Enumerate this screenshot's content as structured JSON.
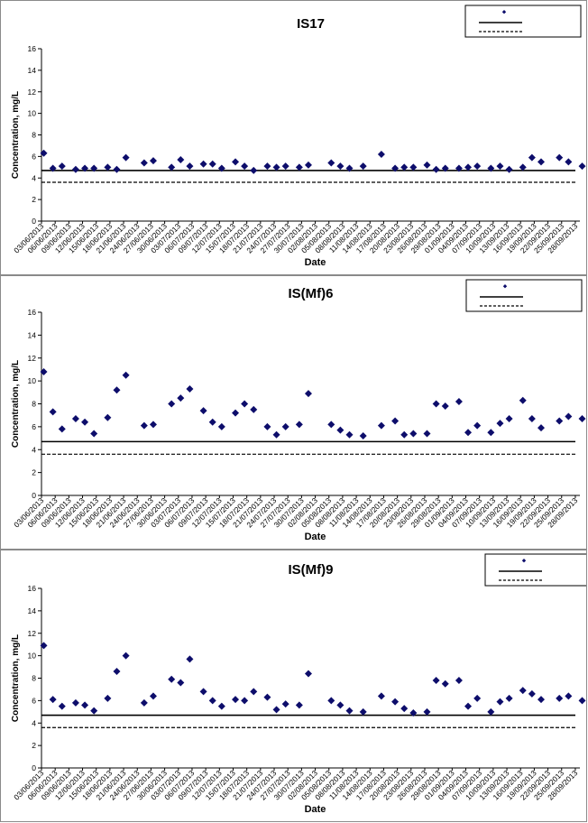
{
  "x_ticks": [
    "03/06/2013",
    "06/06/2013",
    "09/06/2013",
    "12/06/2013",
    "15/06/2013",
    "18/06/2013",
    "21/06/2013",
    "24/06/2013",
    "27/06/2013",
    "30/06/2013",
    "03/07/2013",
    "06/07/2013",
    "09/07/2013",
    "12/07/2013",
    "15/07/2013",
    "18/07/2013",
    "21/07/2013",
    "24/07/2013",
    "27/07/2013",
    "30/07/2013",
    "02/08/2013",
    "05/08/2013",
    "08/08/2013",
    "11/08/2013",
    "14/08/2013",
    "17/08/2013",
    "20/08/2013",
    "23/08/2013",
    "26/08/2013",
    "29/08/2013",
    "01/09/2013",
    "04/09/2013",
    "07/09/2013",
    "10/09/2013",
    "13/09/2013",
    "16/09/2013",
    "19/09/2013",
    "22/09/2013",
    "25/09/2013",
    "28/09/2013"
  ],
  "colors": {
    "marker": "#0d0d6b",
    "axis": "#000000",
    "frame": "#8a8a8a"
  },
  "chart_data": [
    {
      "type": "scatter",
      "title": "IS17",
      "xlabel": "Date",
      "ylabel": "Concentration, mg/L",
      "ylim": [
        0,
        16
      ],
      "yticks": [
        0,
        2,
        4,
        6,
        8,
        10,
        12,
        14,
        16
      ],
      "grid": false,
      "legend_position": "top-right",
      "series": [
        {
          "name": "",
          "marker": "diamond",
          "x": [
            "03/06/2013",
            "05/06/2013",
            "07/06/2013",
            "10/06/2013",
            "12/06/2013",
            "14/06/2013",
            "17/06/2013",
            "19/06/2013",
            "21/06/2013",
            "25/06/2013",
            "27/06/2013",
            "01/07/2013",
            "03/07/2013",
            "05/07/2013",
            "08/07/2013",
            "10/07/2013",
            "12/07/2013",
            "15/07/2013",
            "17/07/2013",
            "19/07/2013",
            "22/07/2013",
            "24/07/2013",
            "26/07/2013",
            "29/07/2013",
            "31/07/2013",
            "05/08/2013",
            "07/08/2013",
            "09/08/2013",
            "12/08/2013",
            "16/08/2013",
            "19/08/2013",
            "21/08/2013",
            "23/08/2013",
            "26/08/2013",
            "28/08/2013",
            "30/08/2013",
            "02/09/2013",
            "04/09/2013",
            "06/09/2013",
            "09/09/2013",
            "11/09/2013",
            "13/09/2013",
            "16/09/2013",
            "18/09/2013",
            "20/09/2013",
            "24/09/2013",
            "26/09/2013",
            "29/09/2013"
          ],
          "y": [
            6.3,
            4.9,
            5.1,
            4.8,
            4.9,
            4.9,
            5.0,
            4.8,
            5.9,
            5.4,
            5.6,
            5.0,
            5.7,
            5.1,
            5.3,
            5.3,
            4.9,
            5.5,
            5.1,
            4.7,
            5.1,
            5.0,
            5.1,
            5.0,
            5.2,
            5.4,
            5.1,
            4.9,
            5.1,
            6.2,
            4.9,
            5.0,
            5.0,
            5.2,
            4.8,
            4.9,
            4.9,
            5.0,
            5.1,
            4.9,
            5.1,
            4.8,
            5.0,
            5.9,
            5.5,
            5.9,
            5.5,
            5.1
          ]
        },
        {
          "name": "",
          "line": "solid",
          "y": 4.7
        },
        {
          "name": "",
          "line": "dashed",
          "y": 3.6
        }
      ]
    },
    {
      "type": "scatter",
      "title": "IS(Mf)6",
      "xlabel": "Date",
      "ylabel": "Concentration, mg/L",
      "ylim": [
        0,
        16
      ],
      "yticks": [
        0,
        2,
        4,
        6,
        8,
        10,
        12,
        14,
        16
      ],
      "grid": false,
      "legend_position": "top-right",
      "series": [
        {
          "name": "",
          "marker": "diamond",
          "x": [
            "03/06/2013",
            "05/06/2013",
            "07/06/2013",
            "10/06/2013",
            "12/06/2013",
            "14/06/2013",
            "17/06/2013",
            "19/06/2013",
            "21/06/2013",
            "25/06/2013",
            "27/06/2013",
            "01/07/2013",
            "03/07/2013",
            "05/07/2013",
            "08/07/2013",
            "10/07/2013",
            "12/07/2013",
            "15/07/2013",
            "17/07/2013",
            "19/07/2013",
            "22/07/2013",
            "24/07/2013",
            "26/07/2013",
            "29/07/2013",
            "31/07/2013",
            "05/08/2013",
            "07/08/2013",
            "09/08/2013",
            "12/08/2013",
            "16/08/2013",
            "19/08/2013",
            "21/08/2013",
            "23/08/2013",
            "26/08/2013",
            "28/08/2013",
            "30/08/2013",
            "02/09/2013",
            "04/09/2013",
            "06/09/2013",
            "09/09/2013",
            "11/09/2013",
            "13/09/2013",
            "16/09/2013",
            "18/09/2013",
            "20/09/2013",
            "24/09/2013",
            "26/09/2013",
            "29/09/2013"
          ],
          "y": [
            10.8,
            7.3,
            5.8,
            6.7,
            6.4,
            5.4,
            6.8,
            9.2,
            10.5,
            6.1,
            6.2,
            8.0,
            8.5,
            9.3,
            7.4,
            6.4,
            6.0,
            7.2,
            8.0,
            7.5,
            6.0,
            5.3,
            6.0,
            6.2,
            8.9,
            6.2,
            5.7,
            5.3,
            5.2,
            6.1,
            6.5,
            5.3,
            5.4,
            5.4,
            8.0,
            7.8,
            8.2,
            5.5,
            6.1,
            5.5,
            6.3,
            6.7,
            8.3,
            6.7,
            5.9,
            6.5,
            6.9,
            6.7
          ]
        },
        {
          "name": "",
          "line": "solid",
          "y": 4.7
        },
        {
          "name": "",
          "line": "dashed",
          "y": 3.6
        }
      ]
    },
    {
      "type": "scatter",
      "title": "IS(Mf)9",
      "xlabel": "Date",
      "ylabel": "Concentration, mg/L",
      "ylim": [
        0,
        16
      ],
      "yticks": [
        0,
        2,
        4,
        6,
        8,
        10,
        12,
        14,
        16
      ],
      "grid": false,
      "legend_position": "top-right",
      "series": [
        {
          "name": "",
          "marker": "diamond",
          "x": [
            "03/06/2013",
            "05/06/2013",
            "07/06/2013",
            "10/06/2013",
            "12/06/2013",
            "14/06/2013",
            "17/06/2013",
            "19/06/2013",
            "21/06/2013",
            "25/06/2013",
            "27/06/2013",
            "01/07/2013",
            "03/07/2013",
            "05/07/2013",
            "08/07/2013",
            "10/07/2013",
            "12/07/2013",
            "15/07/2013",
            "17/07/2013",
            "19/07/2013",
            "22/07/2013",
            "24/07/2013",
            "26/07/2013",
            "29/07/2013",
            "31/07/2013",
            "05/08/2013",
            "07/08/2013",
            "09/08/2013",
            "12/08/2013",
            "16/08/2013",
            "19/08/2013",
            "21/08/2013",
            "23/08/2013",
            "26/08/2013",
            "28/08/2013",
            "30/08/2013",
            "02/09/2013",
            "04/09/2013",
            "06/09/2013",
            "09/09/2013",
            "11/09/2013",
            "13/09/2013",
            "16/09/2013",
            "18/09/2013",
            "20/09/2013",
            "24/09/2013",
            "26/09/2013",
            "29/09/2013"
          ],
          "y": [
            10.9,
            6.1,
            5.5,
            5.8,
            5.6,
            5.1,
            6.2,
            8.6,
            10.0,
            5.8,
            6.4,
            7.9,
            7.6,
            9.7,
            6.8,
            6.0,
            5.5,
            6.1,
            6.0,
            6.8,
            6.3,
            5.2,
            5.7,
            5.6,
            8.4,
            6.0,
            5.6,
            5.1,
            5.0,
            6.4,
            5.9,
            5.3,
            4.9,
            5.0,
            7.8,
            7.5,
            7.8,
            5.5,
            6.2,
            5.0,
            5.9,
            6.2,
            6.9,
            6.6,
            6.1,
            6.2,
            6.4,
            6.0
          ]
        },
        {
          "name": "",
          "line": "solid",
          "y": 4.7
        },
        {
          "name": "",
          "line": "dashed",
          "y": 3.6
        }
      ]
    }
  ]
}
